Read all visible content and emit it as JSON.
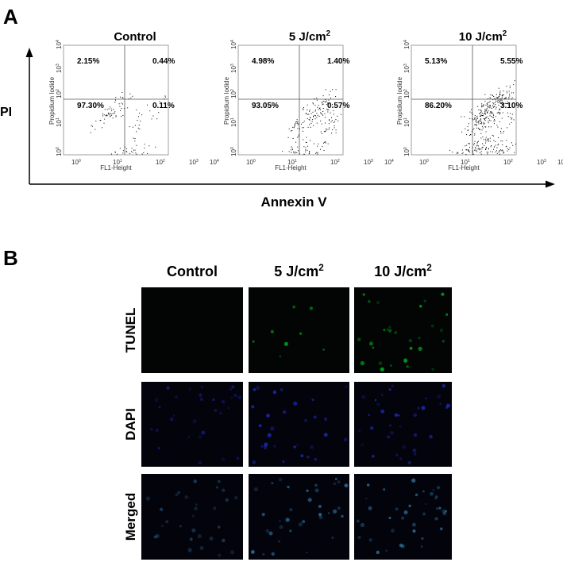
{
  "panel_a": {
    "label": "A",
    "plots": [
      {
        "title": {
          "text": "Control"
        },
        "quadrants": [
          "2.15%",
          "0.44%",
          "97.30%",
          "0.11%"
        ]
      },
      {
        "title": {
          "text": "5 J/cm",
          "sup": "2"
        },
        "quadrants": [
          "4.98%",
          "1.40%",
          "93.05%",
          "0.57%"
        ]
      },
      {
        "title": {
          "text": "10 J/cm",
          "sup": "2"
        },
        "quadrants": [
          "5.13%",
          "5.55%",
          "86.20%",
          "3.10%"
        ]
      }
    ],
    "y_axis_label": "Propidium Iodide",
    "x_axis_label": "FL1-Height",
    "ticks": [
      {
        "base": "10",
        "sup": "0"
      },
      {
        "base": "10",
        "sup": "1"
      },
      {
        "base": "10",
        "sup": "2"
      },
      {
        "base": "10",
        "sup": "3"
      },
      {
        "base": "10",
        "sup": "4"
      }
    ],
    "outer_y_label": "PI",
    "outer_x_label": "Annexin V"
  },
  "panel_b": {
    "label": "B",
    "columns": [
      {
        "text": "Control"
      },
      {
        "text": "5 J/cm",
        "sup": "2"
      },
      {
        "text": "10 J/cm",
        "sup": "2"
      }
    ],
    "rows": [
      "TUNEL",
      "DAPI",
      "Merged"
    ]
  }
}
